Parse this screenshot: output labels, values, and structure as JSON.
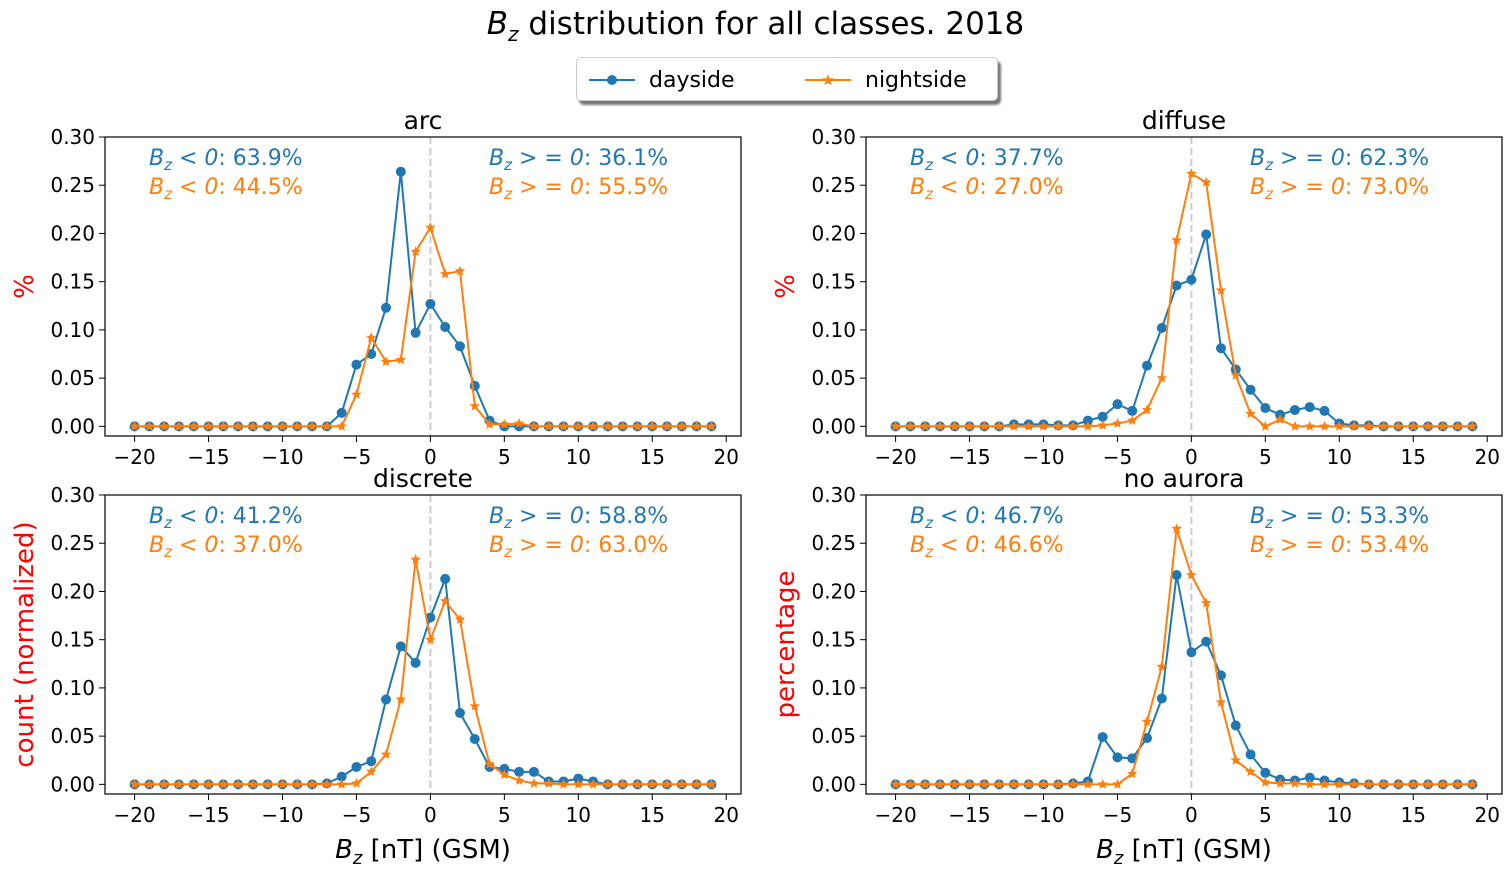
{
  "figure": {
    "title_var": "B",
    "title_sub": "z",
    "title_rest": " distribution for all classes. 2018"
  },
  "colors": {
    "dayside": "#1f77b4",
    "nightside": "#ff7f0e",
    "ylabel": "#ff0000",
    "zero_line": "#cccccc"
  },
  "legend": {
    "items": [
      {
        "label": "dayside",
        "marker": "circle"
      },
      {
        "label": "nightside",
        "marker": "star"
      }
    ]
  },
  "chart_data": [
    {
      "type": "line",
      "title": "arc",
      "ylabel": "%",
      "xlabel": "",
      "xlim": [
        -22,
        21
      ],
      "ylim": [
        -0.01,
        0.3
      ],
      "xticks": [
        -20,
        -15,
        -10,
        -5,
        0,
        5,
        10,
        15,
        20
      ],
      "yticks": [
        "0.00",
        "0.05",
        "0.10",
        "0.15",
        "0.20",
        "0.25",
        "0.30"
      ],
      "x": [
        -20,
        -19,
        -18,
        -17,
        -16,
        -15,
        -14,
        -13,
        -12,
        -11,
        -10,
        -9,
        -8,
        -7,
        -6,
        -5,
        -4,
        -3,
        -2,
        -1,
        0,
        1,
        2,
        3,
        4,
        5,
        6,
        7,
        8,
        9,
        10,
        11,
        12,
        13,
        14,
        15,
        16,
        17,
        18,
        19
      ],
      "series": [
        {
          "name": "dayside",
          "values": [
            0,
            0,
            0,
            0,
            0,
            0,
            0,
            0,
            0,
            0,
            0,
            0,
            0,
            0,
            0.014,
            0.064,
            0.075,
            0.123,
            0.264,
            0.097,
            0.127,
            0.103,
            0.083,
            0.042,
            0.006,
            0,
            0,
            0,
            0,
            0,
            0,
            0,
            0,
            0,
            0,
            0,
            0,
            0,
            0,
            0
          ]
        },
        {
          "name": "nightside",
          "values": [
            0,
            0,
            0,
            0,
            0,
            0,
            0,
            0,
            0,
            0,
            0,
            0,
            0,
            0,
            0,
            0.033,
            0.092,
            0.067,
            0.069,
            0.181,
            0.206,
            0.158,
            0.161,
            0.021,
            0.002,
            0.002,
            0.003,
            0,
            0,
            0,
            0,
            0,
            0,
            0,
            0,
            0,
            0,
            0,
            0,
            0
          ]
        }
      ],
      "annotations": {
        "day_neg": ": 63.9%",
        "day_pos": ": 36.1%",
        "night_neg": ": 44.5%",
        "night_pos": ": 55.5%"
      }
    },
    {
      "type": "line",
      "title": "diffuse",
      "ylabel": "%",
      "xlabel": "",
      "xlim": [
        -22,
        21
      ],
      "ylim": [
        -0.01,
        0.3
      ],
      "xticks": [
        -20,
        -15,
        -10,
        -5,
        0,
        5,
        10,
        15,
        20
      ],
      "yticks": [
        "0.00",
        "0.05",
        "0.10",
        "0.15",
        "0.20",
        "0.25",
        "0.30"
      ],
      "x": [
        -20,
        -19,
        -18,
        -17,
        -16,
        -15,
        -14,
        -13,
        -12,
        -11,
        -10,
        -9,
        -8,
        -7,
        -6,
        -5,
        -4,
        -3,
        -2,
        -1,
        0,
        1,
        2,
        3,
        4,
        5,
        6,
        7,
        8,
        9,
        10,
        11,
        12,
        13,
        14,
        15,
        16,
        17,
        18,
        19
      ],
      "series": [
        {
          "name": "dayside",
          "values": [
            0,
            0,
            0,
            0,
            0,
            0,
            0,
            0,
            0.002,
            0.002,
            0.002,
            0.001,
            0.001,
            0.006,
            0.01,
            0.023,
            0.016,
            0.063,
            0.102,
            0.146,
            0.152,
            0.199,
            0.081,
            0.059,
            0.038,
            0.019,
            0.012,
            0.017,
            0.02,
            0.016,
            0.003,
            0.001,
            0.001,
            0,
            0,
            0,
            0,
            0,
            0,
            0
          ]
        },
        {
          "name": "nightside",
          "values": [
            0,
            0,
            0,
            0,
            0,
            0,
            0,
            0,
            0,
            0,
            0,
            0,
            0,
            0,
            0.001,
            0.003,
            0.006,
            0.017,
            0.05,
            0.193,
            0.262,
            0.253,
            0.141,
            0.053,
            0.013,
            0,
            0.007,
            0,
            0,
            0,
            0,
            0,
            0,
            0,
            0,
            0,
            0,
            0,
            0,
            0
          ]
        }
      ],
      "annotations": {
        "day_neg": ": 37.7%",
        "day_pos": ": 62.3%",
        "night_neg": ": 27.0%",
        "night_pos": ": 73.0%"
      }
    },
    {
      "type": "line",
      "title": "discrete",
      "ylabel": "count (normalized)",
      "xlabel": "[nT] (GSM)",
      "xlim": [
        -22,
        21
      ],
      "ylim": [
        -0.01,
        0.3
      ],
      "xticks": [
        -20,
        -15,
        -10,
        -5,
        0,
        5,
        10,
        15,
        20
      ],
      "yticks": [
        "0.00",
        "0.05",
        "0.10",
        "0.15",
        "0.20",
        "0.25",
        "0.30"
      ],
      "x": [
        -20,
        -19,
        -18,
        -17,
        -16,
        -15,
        -14,
        -13,
        -12,
        -11,
        -10,
        -9,
        -8,
        -7,
        -6,
        -5,
        -4,
        -3,
        -2,
        -1,
        0,
        1,
        2,
        3,
        4,
        5,
        6,
        7,
        8,
        9,
        10,
        11,
        12,
        13,
        14,
        15,
        16,
        17,
        18,
        19
      ],
      "series": [
        {
          "name": "dayside",
          "values": [
            0,
            0,
            0,
            0,
            0,
            0,
            0,
            0,
            0,
            0,
            0,
            0,
            0,
            0.001,
            0.008,
            0.018,
            0.024,
            0.088,
            0.143,
            0.126,
            0.173,
            0.213,
            0.074,
            0.047,
            0.018,
            0.016,
            0.013,
            0.013,
            0.003,
            0.003,
            0.006,
            0.003,
            0,
            0,
            0,
            0,
            0,
            0,
            0,
            0
          ]
        },
        {
          "name": "nightside",
          "values": [
            0,
            0,
            0,
            0,
            0,
            0,
            0,
            0,
            0,
            0,
            0,
            0,
            0,
            0,
            0,
            0.001,
            0.013,
            0.031,
            0.088,
            0.233,
            0.15,
            0.19,
            0.171,
            0.081,
            0.021,
            0.01,
            0.004,
            0.001,
            0.001,
            0,
            0,
            0,
            0,
            0,
            0,
            0,
            0,
            0,
            0,
            0
          ]
        }
      ],
      "annotations": {
        "day_neg": ": 41.2%",
        "day_pos": ": 58.8%",
        "night_neg": ": 37.0%",
        "night_pos": ": 63.0%"
      }
    },
    {
      "type": "line",
      "title": "no aurora",
      "ylabel": "percentage",
      "xlabel": "[nT] (GSM)",
      "xlim": [
        -22,
        21
      ],
      "ylim": [
        -0.01,
        0.3
      ],
      "xticks": [
        -20,
        -15,
        -10,
        -5,
        0,
        5,
        10,
        15,
        20
      ],
      "yticks": [
        "0.00",
        "0.05",
        "0.10",
        "0.15",
        "0.20",
        "0.25",
        "0.30"
      ],
      "x": [
        -20,
        -19,
        -18,
        -17,
        -16,
        -15,
        -14,
        -13,
        -12,
        -11,
        -10,
        -9,
        -8,
        -7,
        -6,
        -5,
        -4,
        -3,
        -2,
        -1,
        0,
        1,
        2,
        3,
        4,
        5,
        6,
        7,
        8,
        9,
        10,
        11,
        12,
        13,
        14,
        15,
        16,
        17,
        18,
        19
      ],
      "series": [
        {
          "name": "dayside",
          "values": [
            0,
            0,
            0,
            0,
            0,
            0,
            0,
            0,
            0,
            0,
            0,
            0,
            0.001,
            0.003,
            0.049,
            0.028,
            0.027,
            0.048,
            0.089,
            0.217,
            0.137,
            0.148,
            0.113,
            0.061,
            0.031,
            0.012,
            0.005,
            0.004,
            0.007,
            0.004,
            0.002,
            0.001,
            0,
            0,
            0,
            0,
            0,
            0,
            0,
            0
          ]
        },
        {
          "name": "nightside",
          "values": [
            0,
            0,
            0,
            0,
            0,
            0,
            0,
            0,
            0,
            0,
            0,
            0,
            0,
            0,
            0,
            0,
            0.011,
            0.065,
            0.122,
            0.265,
            0.217,
            0.188,
            0.085,
            0.025,
            0.013,
            0.002,
            0.001,
            0.001,
            0,
            0,
            0,
            0,
            0,
            0,
            0,
            0,
            0,
            0,
            0,
            0
          ]
        }
      ],
      "annotations": {
        "day_neg": ": 46.7%",
        "day_pos": ": 53.3%",
        "night_neg": ": 46.6%",
        "night_pos": ": 53.4%"
      }
    }
  ]
}
